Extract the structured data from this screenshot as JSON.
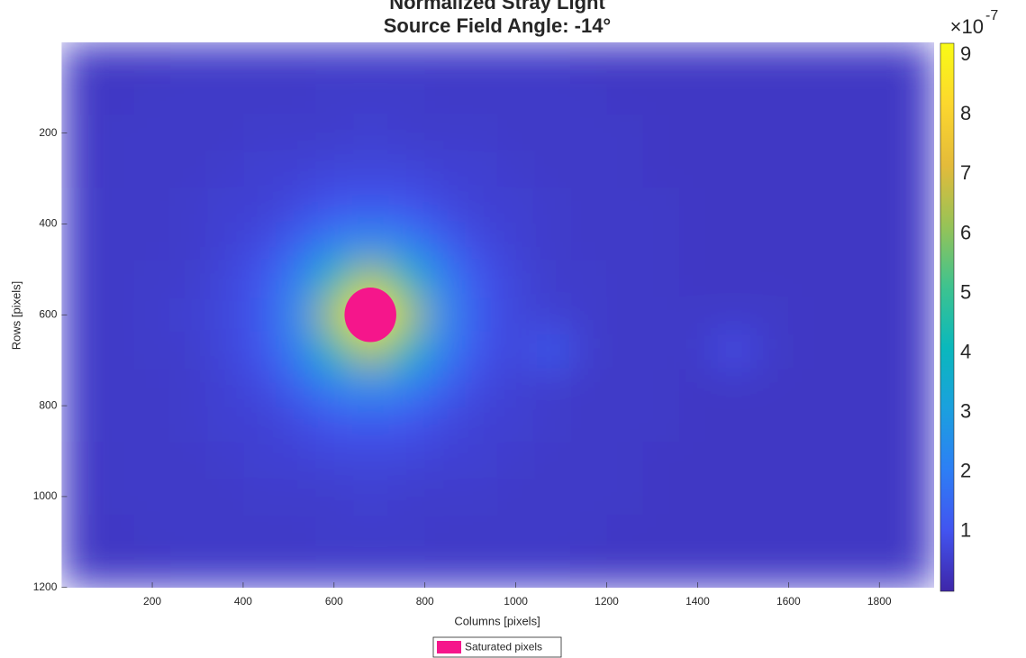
{
  "chart_data": {
    "type": "heatmap",
    "title": "Normalized Stray Light",
    "subtitle": "Source Field Angle: -14°",
    "x_label": "Columns [pixels]",
    "y_label": "Rows [pixels]",
    "xlim": [
      0.5,
      1920.5
    ],
    "ylim": [
      0.5,
      1200.5
    ],
    "xticks": [
      200,
      400,
      600,
      800,
      1000,
      1200,
      1400,
      1600,
      1800
    ],
    "yticks": [
      200,
      400,
      600,
      800,
      1000,
      1200
    ],
    "clim": [
      0,
      9.2
    ],
    "cticks": [
      1,
      2,
      3,
      4,
      5,
      6,
      7,
      8,
      9
    ],
    "colorbar_scale_base": "×10",
    "colorbar_scale_exponent": "-7",
    "colormap": [
      "#3e26a8",
      "#4254f0",
      "#2d7ff5",
      "#1ba0de",
      "#0ab8bc",
      "#3ec38f",
      "#97c357",
      "#e4bb3a",
      "#fcd72e",
      "#f9fb15"
    ],
    "x": [
      40,
      120,
      200,
      280,
      360,
      440,
      520,
      600,
      680,
      760,
      840,
      920,
      1000,
      1080,
      1160,
      1240,
      1320,
      1400,
      1480,
      1560,
      1640,
      1720,
      1800,
      1880
    ],
    "y": [
      40,
      120,
      200,
      280,
      360,
      440,
      520,
      600,
      680,
      760,
      840,
      920,
      1000,
      1080,
      1160
    ],
    "z": [
      [
        0.4,
        0.4,
        0.4,
        0.45,
        0.45,
        0.45,
        0.45,
        0.45,
        0.45,
        0.45,
        0.45,
        0.45,
        0.45,
        0.45,
        0.4,
        0.4,
        0.4,
        0.4,
        0.4,
        0.4,
        0.4,
        0.4,
        0.4,
        0.4
      ],
      [
        0.4,
        0.4,
        0.45,
        0.45,
        0.45,
        0.45,
        0.45,
        0.5,
        0.5,
        0.5,
        0.45,
        0.45,
        0.45,
        0.45,
        0.45,
        0.4,
        0.4,
        0.4,
        0.4,
        0.4,
        0.4,
        0.4,
        0.4,
        0.4
      ],
      [
        0.4,
        0.45,
        0.45,
        0.45,
        0.45,
        0.5,
        0.5,
        0.5,
        0.6,
        0.5,
        0.5,
        0.5,
        0.45,
        0.45,
        0.45,
        0.45,
        0.4,
        0.4,
        0.4,
        0.4,
        0.4,
        0.4,
        0.4,
        0.4
      ],
      [
        0.4,
        0.45,
        0.45,
        0.45,
        0.5,
        0.6,
        0.6,
        0.7,
        0.7,
        0.7,
        0.6,
        0.6,
        0.5,
        0.45,
        0.45,
        0.45,
        0.4,
        0.4,
        0.4,
        0.4,
        0.4,
        0.4,
        0.4,
        0.4
      ],
      [
        0.45,
        0.45,
        0.45,
        0.5,
        0.6,
        0.6,
        0.8,
        1.0,
        1.1,
        1.0,
        0.8,
        0.6,
        0.6,
        0.5,
        0.45,
        0.45,
        0.45,
        0.4,
        0.4,
        0.4,
        0.4,
        0.4,
        0.4,
        0.4
      ],
      [
        0.45,
        0.45,
        0.45,
        0.5,
        0.6,
        0.8,
        1.3,
        2.1,
        2.5,
        2.1,
        1.3,
        0.8,
        0.6,
        0.5,
        0.45,
        0.45,
        0.45,
        0.4,
        0.4,
        0.4,
        0.4,
        0.4,
        0.4,
        0.4
      ],
      [
        0.45,
        0.45,
        0.5,
        0.5,
        0.7,
        1.0,
        2.1,
        4.2,
        6.5,
        4.2,
        2.1,
        1.0,
        0.7,
        0.5,
        0.5,
        0.45,
        0.45,
        0.4,
        0.4,
        0.4,
        0.4,
        0.4,
        0.4,
        0.4
      ],
      [
        0.45,
        0.45,
        0.5,
        0.6,
        0.7,
        1.1,
        2.5,
        6.5,
        9.2,
        6.5,
        2.5,
        1.1,
        0.7,
        0.6,
        0.5,
        0.45,
        0.45,
        0.45,
        0.45,
        0.45,
        0.4,
        0.4,
        0.4,
        0.4
      ],
      [
        0.45,
        0.45,
        0.5,
        0.5,
        0.7,
        1.0,
        2.1,
        4.2,
        6.5,
        4.2,
        2.1,
        1.0,
        0.7,
        1.2,
        0.5,
        0.45,
        0.45,
        0.45,
        0.9,
        0.45,
        0.4,
        0.4,
        0.4,
        0.4
      ],
      [
        0.45,
        0.45,
        0.45,
        0.5,
        0.6,
        0.8,
        1.3,
        2.1,
        2.5,
        2.1,
        1.3,
        0.8,
        0.6,
        0.5,
        0.45,
        0.45,
        0.45,
        0.4,
        0.4,
        0.4,
        0.4,
        0.4,
        0.4,
        0.4
      ],
      [
        0.45,
        0.45,
        0.45,
        0.5,
        0.6,
        0.6,
        0.8,
        1.0,
        1.1,
        1.0,
        0.8,
        0.6,
        0.6,
        0.5,
        0.45,
        0.45,
        0.45,
        0.4,
        0.4,
        0.4,
        0.4,
        0.4,
        0.4,
        0.4
      ],
      [
        0.4,
        0.45,
        0.45,
        0.45,
        0.5,
        0.6,
        0.6,
        0.7,
        0.7,
        0.7,
        0.6,
        0.6,
        0.5,
        0.45,
        0.45,
        0.45,
        0.4,
        0.4,
        0.4,
        0.4,
        0.4,
        0.4,
        0.4,
        0.4
      ],
      [
        0.4,
        0.45,
        0.45,
        0.45,
        0.45,
        0.5,
        0.5,
        0.5,
        0.6,
        0.5,
        0.5,
        0.5,
        0.45,
        0.45,
        0.45,
        0.45,
        0.4,
        0.4,
        0.4,
        0.4,
        0.4,
        0.4,
        0.4,
        0.4
      ],
      [
        0.4,
        0.4,
        0.45,
        0.45,
        0.45,
        0.45,
        0.45,
        0.5,
        0.5,
        0.5,
        0.45,
        0.45,
        0.45,
        0.45,
        0.45,
        0.4,
        0.4,
        0.4,
        0.4,
        0.4,
        0.4,
        0.4,
        0.4,
        0.4
      ],
      [
        0.4,
        0.4,
        0.4,
        0.45,
        0.45,
        0.45,
        0.45,
        0.45,
        0.45,
        0.45,
        0.45,
        0.45,
        0.45,
        0.45,
        0.4,
        0.4,
        0.4,
        0.4,
        0.4,
        0.4,
        0.4,
        0.4,
        0.4,
        0.4
      ]
    ],
    "saturated": {
      "name": "Saturated pixels",
      "color": "#f5168b",
      "x": 680,
      "y": 600,
      "rx": 57,
      "ry": 60
    }
  }
}
